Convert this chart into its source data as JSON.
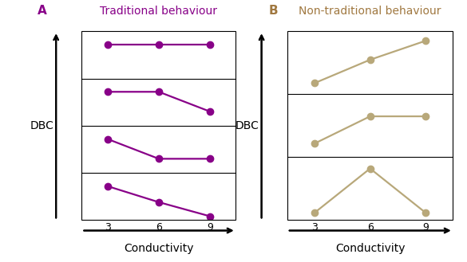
{
  "title_A": "Traditional behaviour",
  "title_B": "Non-traditional behaviour",
  "label_A": "A",
  "label_B": "B",
  "xlabel": "Conductivity",
  "ylabel": "DBC",
  "x_ticks": [
    3,
    6,
    9
  ],
  "purple_color": "#880088",
  "tan_color": "#b8a87a",
  "background": "#ffffff",
  "title_color_A": "#880088",
  "title_color_B": "#a07840",
  "label_color_A": "#880088",
  "label_color_B": "#a07840",
  "purple_lines": [
    {
      "x": [
        3,
        6,
        9
      ],
      "y": [
        0.72,
        0.72,
        0.72
      ]
    },
    {
      "x": [
        3,
        6,
        9
      ],
      "y": [
        0.72,
        0.72,
        0.3
      ]
    },
    {
      "x": [
        3,
        6,
        9
      ],
      "y": [
        0.72,
        0.3,
        0.3
      ]
    },
    {
      "x": [
        3,
        6,
        9
      ],
      "y": [
        0.72,
        0.38,
        0.08
      ]
    }
  ],
  "tan_lines": [
    {
      "x": [
        3,
        6,
        9
      ],
      "y": [
        0.18,
        0.55,
        0.85
      ]
    },
    {
      "x": [
        3,
        6,
        9
      ],
      "y": [
        0.22,
        0.65,
        0.65
      ]
    },
    {
      "x": [
        3,
        6,
        9
      ],
      "y": [
        0.12,
        0.82,
        0.12
      ]
    }
  ],
  "marker_size": 6,
  "line_width": 1.6,
  "figsize": [
    5.85,
    3.29
  ],
  "dpi": 100
}
